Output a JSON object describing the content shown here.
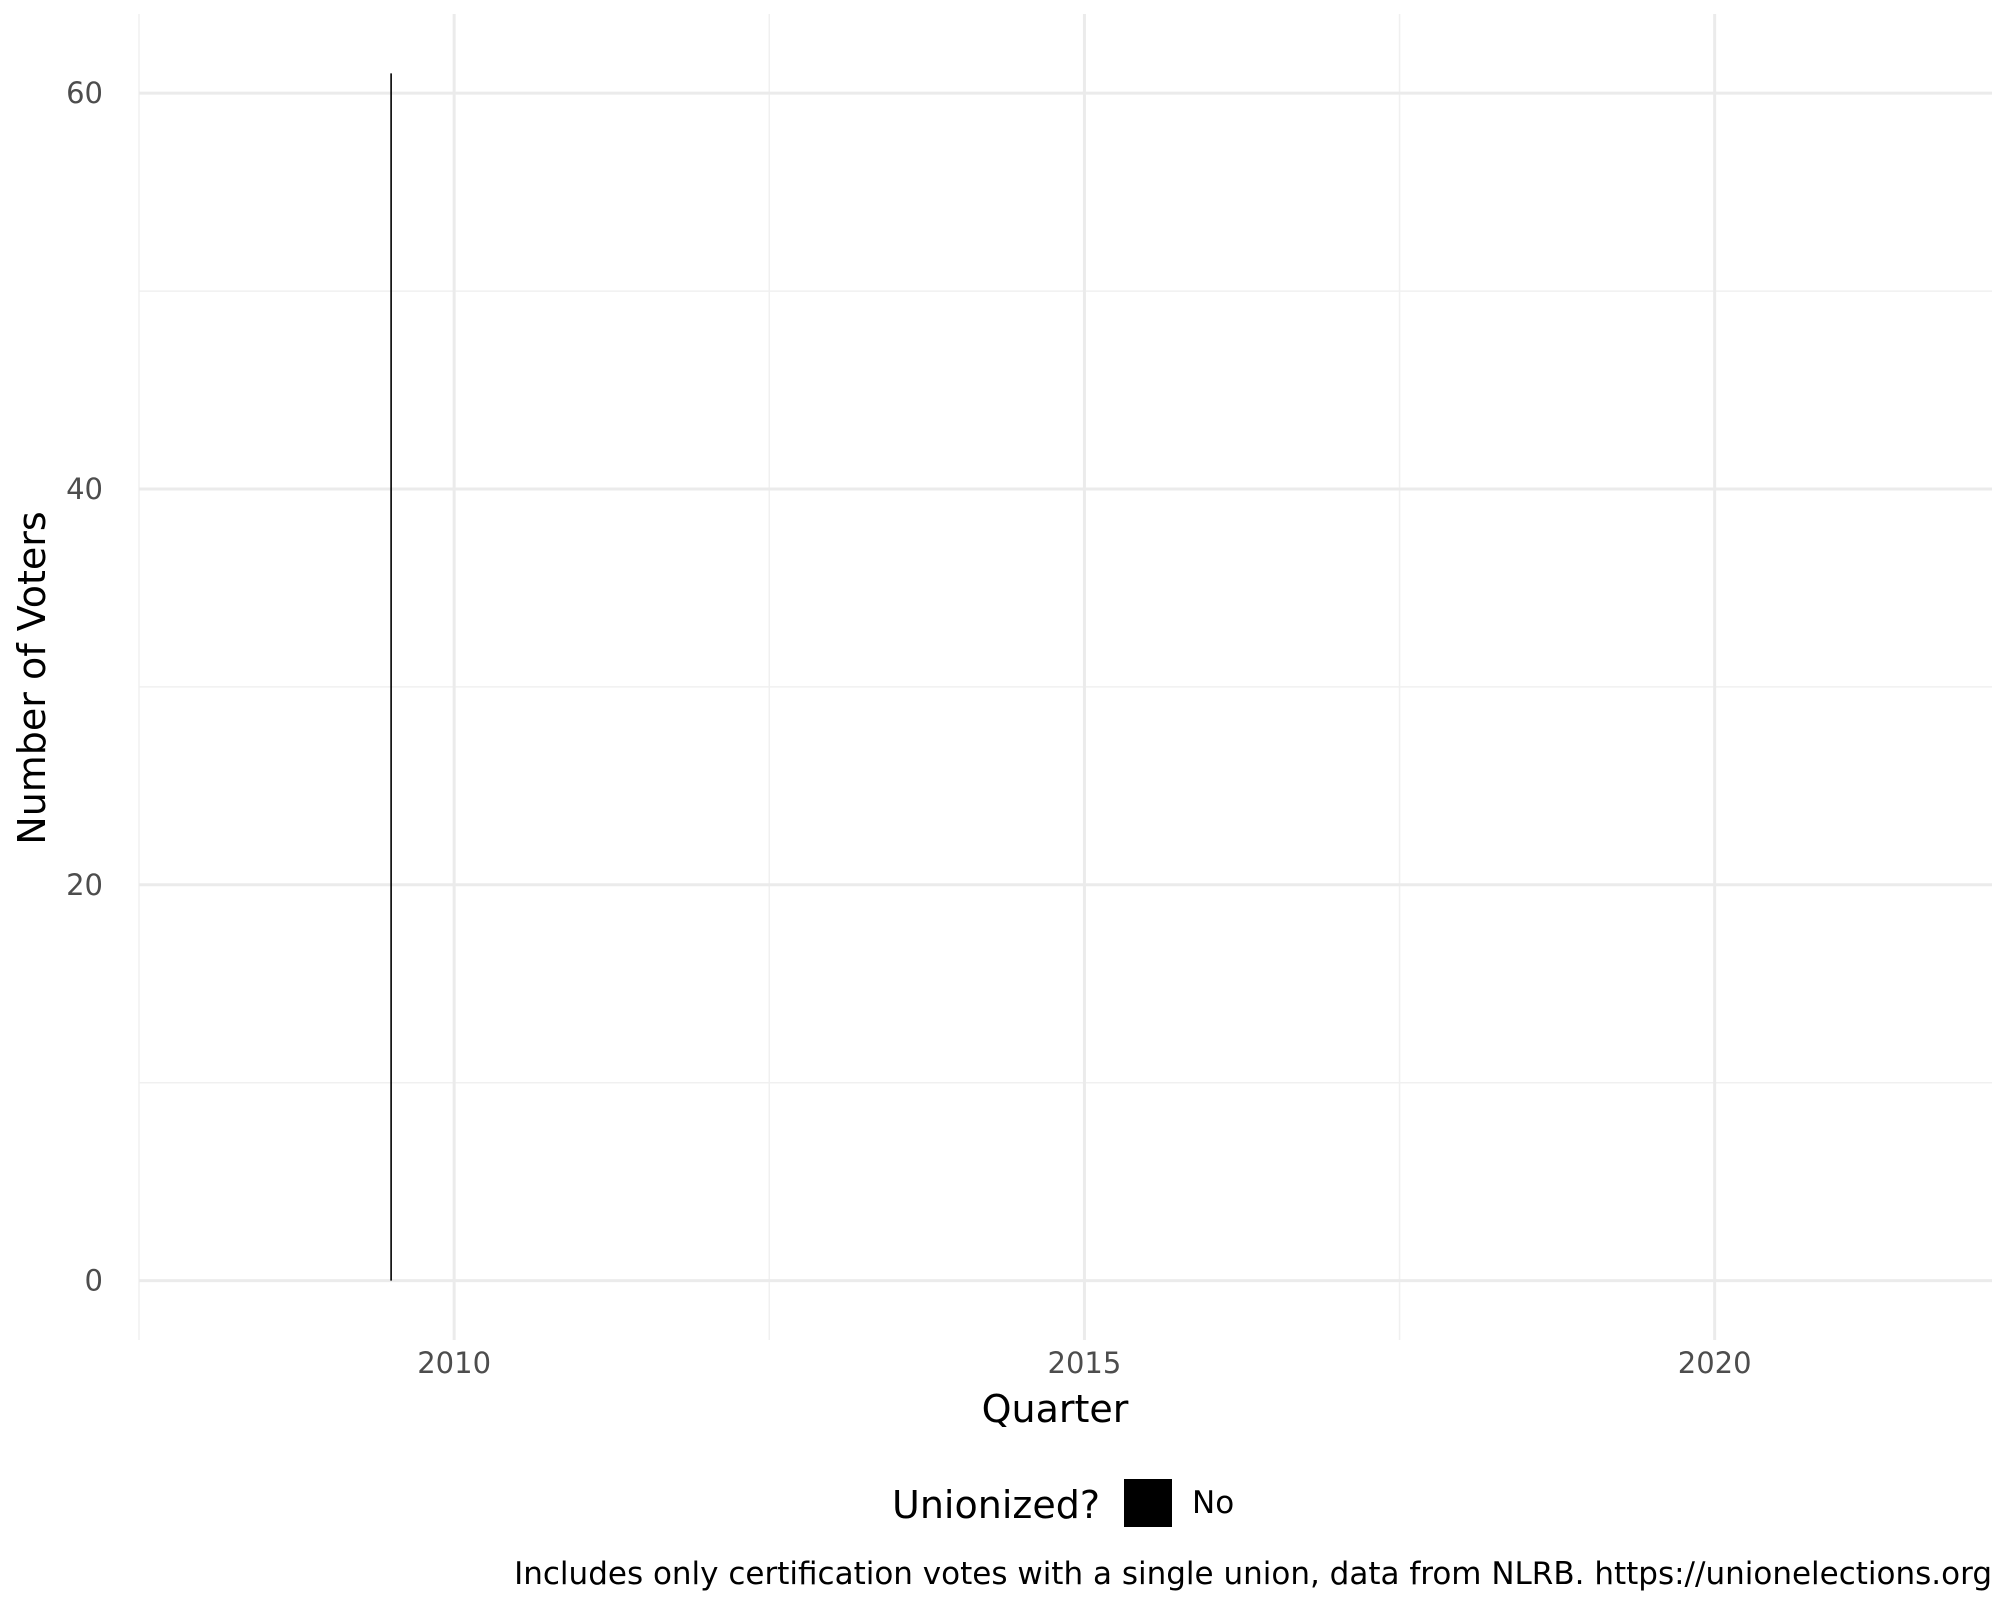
{
  "chart_data": {
    "type": "bar",
    "title": "",
    "xlabel": "Quarter",
    "ylabel": "Number of Voters",
    "caption": "Includes only certification votes with a single union, data from NLRB. https://unionelections.org",
    "xlim": [
      2007.5,
      2022.2
    ],
    "ylim": [
      -3,
      64
    ],
    "x_ticks": [
      2010,
      2015,
      2020
    ],
    "x_tick_labels": [
      "2010",
      "2015",
      "2020"
    ],
    "y_ticks": [
      0,
      20,
      40,
      60
    ],
    "y_tick_labels": [
      "0",
      "20",
      "40",
      "60"
    ],
    "grid": true,
    "legend": {
      "title": "Unionized?",
      "position": "bottom",
      "entries": [
        {
          "label": "No",
          "color": "#000000"
        }
      ]
    },
    "series": [
      {
        "name": "No",
        "color": "#000000",
        "points": [
          {
            "x": 2009.5,
            "y": 61
          }
        ]
      }
    ]
  }
}
